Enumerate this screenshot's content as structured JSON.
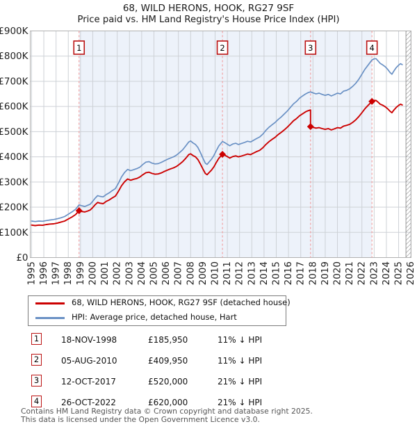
{
  "title": "68, WILD HERONS, HOOK, RG27 9SF",
  "subtitle": "Price paid vs. HM Land Registry's House Price Index (HPI)",
  "colors": {
    "property_line": "#cc0000",
    "hpi_line": "#6990c4",
    "sale_dash": "#f19999",
    "badge_border": "#bb1111",
    "shade": "#edf2fa",
    "grid": "#cdd1d6",
    "plot_border": "#b0b0b0",
    "hatch": "#aaaaaa",
    "tick_text": "#222222"
  },
  "chart_data": {
    "type": "line",
    "unit": "GBP thousands",
    "x_range": [
      1994.89,
      2026.02
    ],
    "ylim": [
      0,
      900
    ],
    "y_ticks": [
      "£0",
      "£100K",
      "£200K",
      "£300K",
      "£400K",
      "£500K",
      "£600K",
      "£700K",
      "£800K",
      "£900K"
    ],
    "x_ticks": [
      1995,
      1996,
      1997,
      1998,
      1999,
      2000,
      2001,
      2002,
      2003,
      2004,
      2005,
      2006,
      2007,
      2008,
      2009,
      2010,
      2011,
      2012,
      2013,
      2014,
      2015,
      2016,
      2017,
      2018,
      2019,
      2020,
      2021,
      2022,
      2023,
      2024,
      2025,
      2026
    ],
    "shaded_span": [
      1998.88,
      2022.82
    ],
    "hatch_span": [
      2025.6,
      2026.02
    ],
    "grid": true,
    "legend_position": "below",
    "series": [
      {
        "name": "HPI: Average price, detached house, Hart",
        "color": "#6990c4",
        "points": [
          [
            1995.0,
            145
          ],
          [
            1995.3,
            143
          ],
          [
            1995.6,
            145
          ],
          [
            1995.9,
            144
          ],
          [
            1996.2,
            147
          ],
          [
            1996.5,
            149
          ],
          [
            1996.8,
            151
          ],
          [
            1997.1,
            154
          ],
          [
            1997.4,
            158
          ],
          [
            1997.7,
            163
          ],
          [
            1998.0,
            172
          ],
          [
            1998.3,
            181
          ],
          [
            1998.6,
            192
          ],
          [
            1998.88,
            209
          ],
          [
            1999.1,
            206
          ],
          [
            1999.35,
            203
          ],
          [
            1999.6,
            208
          ],
          [
            1999.8,
            212
          ],
          [
            2000.0,
            224
          ],
          [
            2000.2,
            236
          ],
          [
            2000.4,
            246
          ],
          [
            2000.6,
            243
          ],
          [
            2000.85,
            241
          ],
          [
            2001.1,
            250
          ],
          [
            2001.35,
            257
          ],
          [
            2001.6,
            266
          ],
          [
            2001.85,
            274
          ],
          [
            2002.1,
            295
          ],
          [
            2002.35,
            320
          ],
          [
            2002.6,
            338
          ],
          [
            2002.85,
            350
          ],
          [
            2003.1,
            345
          ],
          [
            2003.35,
            349
          ],
          [
            2003.6,
            353
          ],
          [
            2003.85,
            359
          ],
          [
            2004.1,
            370
          ],
          [
            2004.35,
            379
          ],
          [
            2004.6,
            381
          ],
          [
            2004.85,
            375
          ],
          [
            2005.1,
            372
          ],
          [
            2005.35,
            373
          ],
          [
            2005.6,
            378
          ],
          [
            2005.85,
            384
          ],
          [
            2006.1,
            390
          ],
          [
            2006.35,
            395
          ],
          [
            2006.6,
            400
          ],
          [
            2006.85,
            407
          ],
          [
            2007.1,
            417
          ],
          [
            2007.35,
            428
          ],
          [
            2007.6,
            443
          ],
          [
            2007.85,
            459
          ],
          [
            2008.0,
            463
          ],
          [
            2008.2,
            455
          ],
          [
            2008.4,
            449
          ],
          [
            2008.6,
            437
          ],
          [
            2008.8,
            417
          ],
          [
            2009.0,
            395
          ],
          [
            2009.2,
            375
          ],
          [
            2009.35,
            370
          ],
          [
            2009.5,
            379
          ],
          [
            2009.7,
            390
          ],
          [
            2009.9,
            405
          ],
          [
            2010.1,
            425
          ],
          [
            2010.3,
            443
          ],
          [
            2010.6,
            461
          ],
          [
            2010.8,
            456
          ],
          [
            2011.0,
            450
          ],
          [
            2011.2,
            444
          ],
          [
            2011.45,
            451
          ],
          [
            2011.7,
            454
          ],
          [
            2011.9,
            449
          ],
          [
            2012.15,
            453
          ],
          [
            2012.4,
            457
          ],
          [
            2012.65,
            462
          ],
          [
            2012.9,
            459
          ],
          [
            2013.15,
            466
          ],
          [
            2013.4,
            473
          ],
          [
            2013.65,
            479
          ],
          [
            2013.9,
            490
          ],
          [
            2014.15,
            505
          ],
          [
            2014.4,
            517
          ],
          [
            2014.65,
            527
          ],
          [
            2014.9,
            536
          ],
          [
            2015.15,
            548
          ],
          [
            2015.4,
            558
          ],
          [
            2015.65,
            570
          ],
          [
            2015.9,
            582
          ],
          [
            2016.15,
            596
          ],
          [
            2016.4,
            610
          ],
          [
            2016.65,
            620
          ],
          [
            2016.9,
            633
          ],
          [
            2017.15,
            642
          ],
          [
            2017.4,
            650
          ],
          [
            2017.6,
            655
          ],
          [
            2017.8,
            658
          ],
          [
            2018.0,
            654
          ],
          [
            2018.25,
            650
          ],
          [
            2018.5,
            653
          ],
          [
            2018.75,
            648
          ],
          [
            2019.0,
            644
          ],
          [
            2019.25,
            648
          ],
          [
            2019.5,
            642
          ],
          [
            2019.75,
            647
          ],
          [
            2020.0,
            653
          ],
          [
            2020.25,
            650
          ],
          [
            2020.5,
            661
          ],
          [
            2020.75,
            664
          ],
          [
            2021.0,
            670
          ],
          [
            2021.25,
            680
          ],
          [
            2021.5,
            692
          ],
          [
            2021.75,
            708
          ],
          [
            2022.0,
            728
          ],
          [
            2022.25,
            748
          ],
          [
            2022.5,
            764
          ],
          [
            2022.82,
            785
          ],
          [
            2023.0,
            789
          ],
          [
            2023.15,
            790
          ],
          [
            2023.3,
            782
          ],
          [
            2023.5,
            771
          ],
          [
            2023.7,
            765
          ],
          [
            2023.9,
            758
          ],
          [
            2024.1,
            748
          ],
          [
            2024.3,
            735
          ],
          [
            2024.45,
            728
          ],
          [
            2024.6,
            740
          ],
          [
            2024.8,
            754
          ],
          [
            2025.0,
            764
          ],
          [
            2025.15,
            770
          ],
          [
            2025.3,
            766
          ]
        ]
      },
      {
        "name": "68, WILD HERONS, HOOK, RG27 9SF (detached house)",
        "color": "#cc0000",
        "points": [
          [
            1995.0,
            129
          ],
          [
            1995.3,
            127
          ],
          [
            1995.6,
            129
          ],
          [
            1995.9,
            128
          ],
          [
            1996.2,
            131
          ],
          [
            1996.5,
            133
          ],
          [
            1996.8,
            134
          ],
          [
            1997.1,
            137
          ],
          [
            1997.4,
            141
          ],
          [
            1997.7,
            145
          ],
          [
            1998.0,
            153
          ],
          [
            1998.3,
            161
          ],
          [
            1998.6,
            171
          ],
          [
            1998.88,
            186
          ],
          [
            1999.1,
            183
          ],
          [
            1999.35,
            181
          ],
          [
            1999.6,
            185
          ],
          [
            1999.8,
            189
          ],
          [
            2000.0,
            199
          ],
          [
            2000.2,
            210
          ],
          [
            2000.4,
            219
          ],
          [
            2000.6,
            216
          ],
          [
            2000.85,
            214
          ],
          [
            2001.1,
            223
          ],
          [
            2001.35,
            229
          ],
          [
            2001.6,
            237
          ],
          [
            2001.85,
            244
          ],
          [
            2002.1,
            263
          ],
          [
            2002.35,
            285
          ],
          [
            2002.6,
            301
          ],
          [
            2002.85,
            312
          ],
          [
            2003.1,
            307
          ],
          [
            2003.35,
            311
          ],
          [
            2003.6,
            314
          ],
          [
            2003.85,
            320
          ],
          [
            2004.1,
            329
          ],
          [
            2004.35,
            337
          ],
          [
            2004.6,
            339
          ],
          [
            2004.85,
            334
          ],
          [
            2005.1,
            331
          ],
          [
            2005.35,
            332
          ],
          [
            2005.6,
            336
          ],
          [
            2005.85,
            342
          ],
          [
            2006.1,
            347
          ],
          [
            2006.35,
            352
          ],
          [
            2006.6,
            356
          ],
          [
            2006.85,
            362
          ],
          [
            2007.1,
            371
          ],
          [
            2007.35,
            381
          ],
          [
            2007.6,
            394
          ],
          [
            2007.85,
            409
          ],
          [
            2008.0,
            412
          ],
          [
            2008.2,
            405
          ],
          [
            2008.4,
            400
          ],
          [
            2008.6,
            389
          ],
          [
            2008.8,
            371
          ],
          [
            2009.0,
            352
          ],
          [
            2009.2,
            334
          ],
          [
            2009.35,
            329
          ],
          [
            2009.5,
            337
          ],
          [
            2009.7,
            347
          ],
          [
            2009.9,
            360
          ],
          [
            2010.1,
            378
          ],
          [
            2010.3,
            394
          ],
          [
            2010.6,
            410
          ],
          [
            2010.8,
            406
          ],
          [
            2011.0,
            401
          ],
          [
            2011.2,
            395
          ],
          [
            2011.45,
            401
          ],
          [
            2011.7,
            404
          ],
          [
            2011.9,
            400
          ],
          [
            2012.15,
            403
          ],
          [
            2012.4,
            407
          ],
          [
            2012.65,
            411
          ],
          [
            2012.9,
            409
          ],
          [
            2013.15,
            415
          ],
          [
            2013.4,
            421
          ],
          [
            2013.65,
            426
          ],
          [
            2013.9,
            436
          ],
          [
            2014.15,
            449
          ],
          [
            2014.4,
            460
          ],
          [
            2014.65,
            469
          ],
          [
            2014.9,
            477
          ],
          [
            2015.15,
            488
          ],
          [
            2015.4,
            497
          ],
          [
            2015.65,
            507
          ],
          [
            2015.9,
            518
          ],
          [
            2016.15,
            530
          ],
          [
            2016.4,
            543
          ],
          [
            2016.65,
            552
          ],
          [
            2016.9,
            563
          ],
          [
            2017.15,
            571
          ],
          [
            2017.4,
            579
          ],
          [
            2017.6,
            583
          ],
          [
            2017.8,
            586
          ],
          [
            2017.8,
            520
          ],
          [
            2018.0,
            517
          ],
          [
            2018.25,
            514
          ],
          [
            2018.5,
            516
          ],
          [
            2018.75,
            512
          ],
          [
            2019.0,
            509
          ],
          [
            2019.25,
            512
          ],
          [
            2019.5,
            507
          ],
          [
            2019.75,
            511
          ],
          [
            2020.0,
            516
          ],
          [
            2020.25,
            514
          ],
          [
            2020.5,
            522
          ],
          [
            2020.75,
            525
          ],
          [
            2021.0,
            529
          ],
          [
            2021.25,
            537
          ],
          [
            2021.5,
            547
          ],
          [
            2021.75,
            560
          ],
          [
            2022.0,
            575
          ],
          [
            2022.25,
            591
          ],
          [
            2022.5,
            604
          ],
          [
            2022.82,
            620
          ],
          [
            2023.0,
            624
          ],
          [
            2023.15,
            624
          ],
          [
            2023.3,
            618
          ],
          [
            2023.5,
            609
          ],
          [
            2023.7,
            605
          ],
          [
            2023.9,
            599
          ],
          [
            2024.1,
            591
          ],
          [
            2024.3,
            581
          ],
          [
            2024.45,
            575
          ],
          [
            2024.6,
            585
          ],
          [
            2024.8,
            596
          ],
          [
            2025.0,
            604
          ],
          [
            2025.15,
            609
          ],
          [
            2025.3,
            606
          ]
        ]
      }
    ],
    "sales": [
      {
        "n": 1,
        "year": 1998.88,
        "date": "18-NOV-1998",
        "price": 185950,
        "price_label": "£185,950",
        "vs_hpi": "11% ↓ HPI",
        "value_k": 186
      },
      {
        "n": 2,
        "year": 2010.6,
        "date": "05-AUG-2010",
        "price": 409950,
        "price_label": "£409,950",
        "vs_hpi": "11% ↓ HPI",
        "value_k": 410
      },
      {
        "n": 3,
        "year": 2017.8,
        "date": "12-OCT-2017",
        "price": 520000,
        "price_label": "£520,000",
        "vs_hpi": "21% ↓ HPI",
        "value_k": 520
      },
      {
        "n": 4,
        "year": 2022.82,
        "date": "26-OCT-2022",
        "price": 620000,
        "price_label": "£620,000",
        "vs_hpi": "21% ↓ HPI",
        "value_k": 620
      }
    ]
  },
  "legend": {
    "items": [
      {
        "label": "68, WILD HERONS, HOOK, RG27 9SF (detached house)",
        "color": "#cc0000"
      },
      {
        "label": "HPI: Average price, detached house, Hart",
        "color": "#6990c4"
      }
    ]
  },
  "footer": {
    "line1": "Contains HM Land Registry data © Crown copyright and database right 2025.",
    "line2": "This data is licensed under the Open Government Licence v3.0."
  }
}
